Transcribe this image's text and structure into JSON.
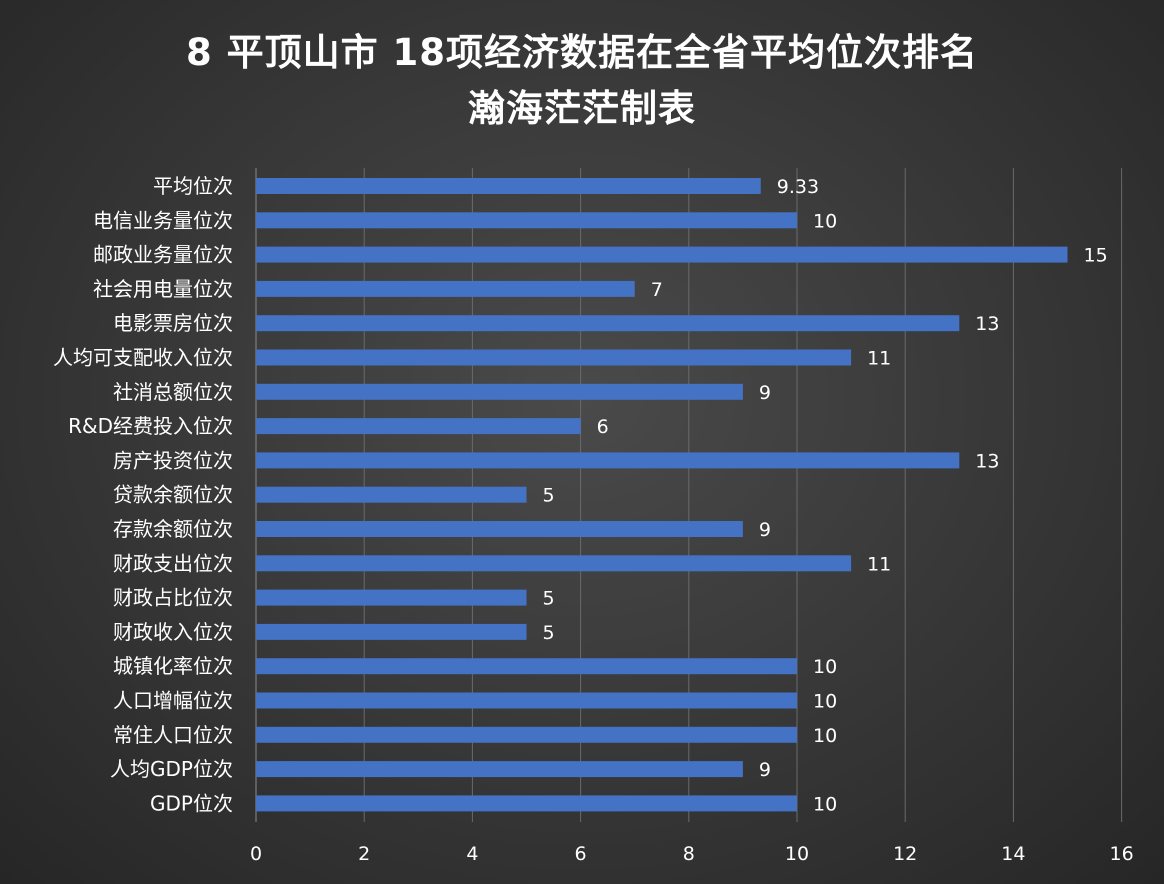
{
  "title": {
    "line1": "8 平顶山市 18项经济数据在全省平均位次排名",
    "line2": "瀚海茫茫制表"
  },
  "chart_data": {
    "type": "bar",
    "orientation": "horizontal",
    "categories": [
      "平均位次",
      "电信业务量位次",
      "邮政业务量位次",
      "社会用电量位次",
      "电影票房位次",
      "人均可支配收入位次",
      "社消总额位次",
      "R&D经费投入位次",
      "房产投资位次",
      "贷款余额位次",
      "存款余额位次",
      "财政支出位次",
      "财政占比位次",
      "财政收入位次",
      "城镇化率位次",
      "人口增幅位次",
      "常住人口位次",
      "人均GDP位次",
      "GDP位次"
    ],
    "values": [
      9.33,
      10,
      15,
      7,
      13,
      11,
      9,
      6,
      13,
      5,
      9,
      11,
      5,
      5,
      10,
      10,
      10,
      9,
      10
    ],
    "xlim": [
      0,
      16
    ],
    "xticks": [
      0,
      2,
      4,
      6,
      8,
      10,
      12,
      14,
      16
    ],
    "grid": "vertical",
    "legend": "none",
    "colors": {
      "bar": "#4472c4",
      "grid": "#6a6a6a",
      "axis": "#8a8a8a",
      "text": "#ffffff"
    }
  }
}
